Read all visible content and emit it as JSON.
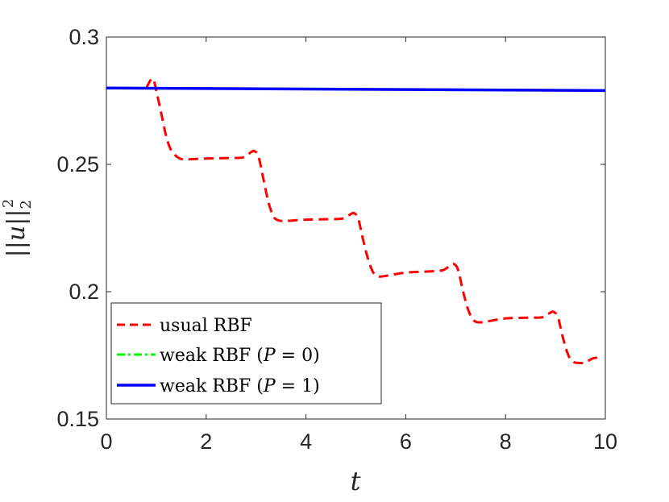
{
  "chart_data": {
    "type": "line",
    "xlabel": "t",
    "ylabel": "||u||",
    "ylabel_sup": "2",
    "ylabel_sub": "2",
    "xlim": [
      0,
      10
    ],
    "ylim": [
      0.15,
      0.3
    ],
    "xticks": [
      0,
      2,
      4,
      6,
      8,
      10
    ],
    "xtick_labels": [
      "0",
      "2",
      "4",
      "6",
      "8",
      "10"
    ],
    "yticks": [
      0.15,
      0.2,
      0.25,
      0.3
    ],
    "ytick_labels": [
      "0.15",
      "0.2",
      "0.25",
      "0.3"
    ],
    "grid": false,
    "legend_position": "bottom-left",
    "series": [
      {
        "name": "usual RBF",
        "color": "#ff0000",
        "style": "dashed",
        "x": [
          0.8,
          0.9,
          0.95,
          1.0,
          1.1,
          1.2,
          1.3,
          1.45,
          1.6,
          2.0,
          2.5,
          2.75,
          2.9,
          2.97,
          3.05,
          3.15,
          3.25,
          3.35,
          3.45,
          3.6,
          4.0,
          4.5,
          4.75,
          4.9,
          4.97,
          5.05,
          5.15,
          5.25,
          5.35,
          5.45,
          5.6,
          6.0,
          6.5,
          6.75,
          6.9,
          6.97,
          7.05,
          7.15,
          7.25,
          7.35,
          7.45,
          7.6,
          8.0,
          8.5,
          8.75,
          8.9,
          8.97,
          9.05,
          9.15,
          9.25,
          9.35,
          9.5,
          9.6,
          9.75,
          9.9
        ],
        "values": [
          0.28,
          0.2835,
          0.283,
          0.279,
          0.27,
          0.261,
          0.2555,
          0.2525,
          0.252,
          0.2523,
          0.2525,
          0.2528,
          0.2548,
          0.2552,
          0.253,
          0.244,
          0.235,
          0.2295,
          0.228,
          0.2278,
          0.2283,
          0.2285,
          0.2288,
          0.2305,
          0.2308,
          0.2285,
          0.22,
          0.2125,
          0.2075,
          0.206,
          0.2062,
          0.2075,
          0.208,
          0.2085,
          0.2105,
          0.2108,
          0.2085,
          0.2,
          0.193,
          0.189,
          0.188,
          0.1882,
          0.1895,
          0.1898,
          0.19,
          0.1918,
          0.192,
          0.19,
          0.182,
          0.1755,
          0.1725,
          0.172,
          0.1722,
          0.1738,
          0.1742
        ]
      },
      {
        "name": "weak RBF (P = 0)",
        "color": "#00ff00",
        "style": "dash-dot",
        "x": [
          0,
          2,
          4,
          6,
          8,
          10
        ],
        "values": [
          0.28,
          0.2798,
          0.2796,
          0.2794,
          0.2792,
          0.279
        ]
      },
      {
        "name": "weak RBF (P = 1)",
        "color": "#0000ff",
        "style": "solid",
        "x": [
          0,
          2,
          4,
          6,
          8,
          10
        ],
        "values": [
          0.28,
          0.2798,
          0.2796,
          0.2794,
          0.2792,
          0.279
        ]
      }
    ],
    "legend_labels": [
      {
        "text": "usual RBF"
      },
      {
        "prefix": "weak RBF (",
        "var": "P",
        "suffix": " = 0)"
      },
      {
        "prefix": "weak RBF (",
        "var": "P",
        "suffix": " = 1)"
      }
    ]
  }
}
